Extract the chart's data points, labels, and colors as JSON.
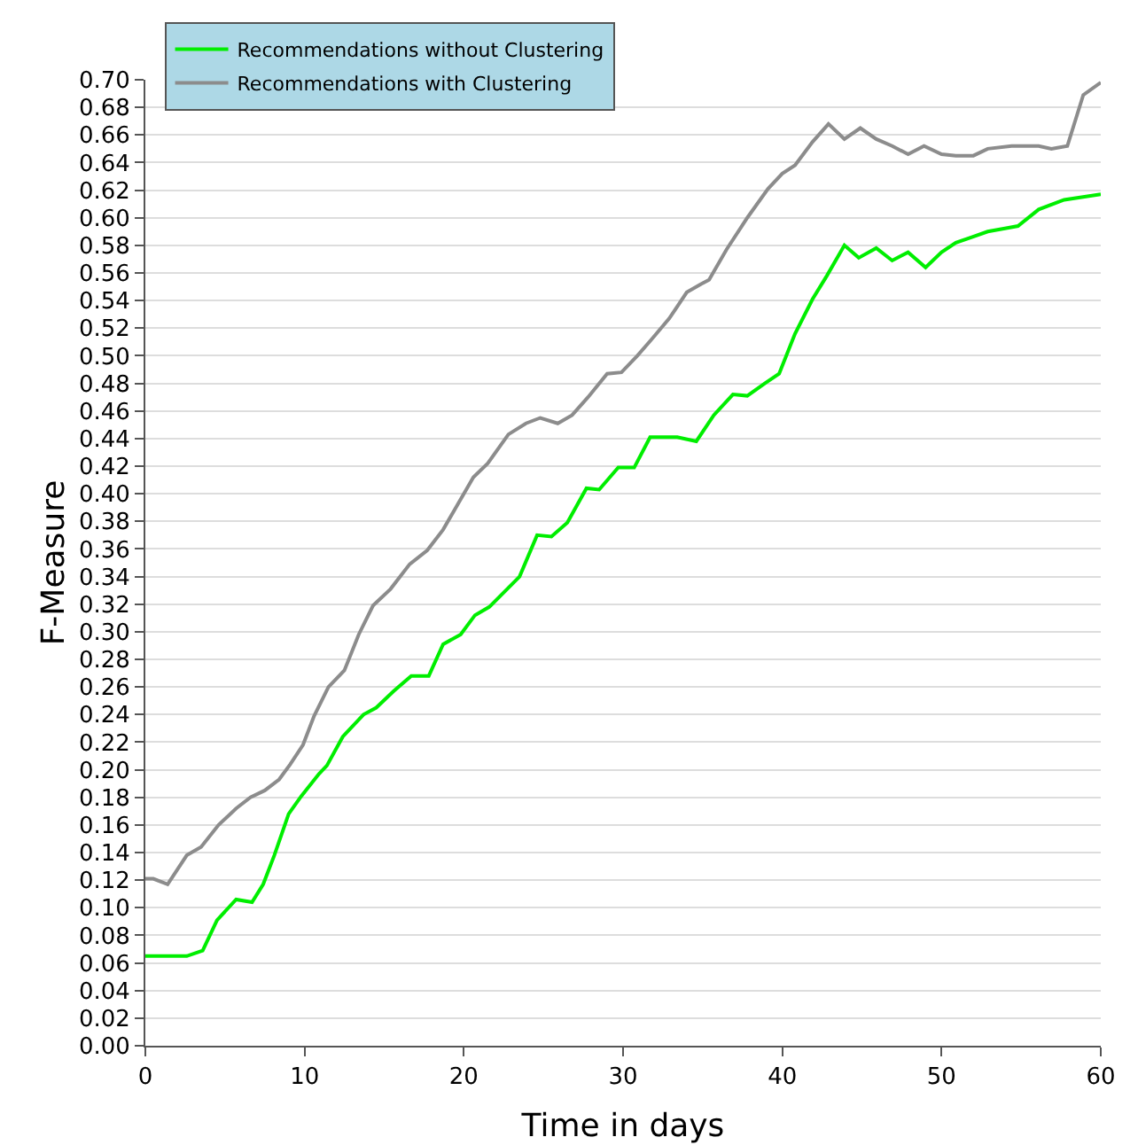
{
  "chart_data": {
    "type": "line",
    "xlabel": "Time in days",
    "ylabel": "F-Measure",
    "series": [
      {
        "name": "Recommendations without Clustering",
        "color": "#00ee00",
        "x": [
          0,
          1,
          2.6,
          3.6,
          4.5,
          5.7,
          6.7,
          7.4,
          8.1,
          9,
          9.8,
          10.9,
          11.4,
          12.4,
          13.7,
          14.5,
          15.6,
          16.7,
          17.8,
          18.7,
          19.8,
          20.7,
          21.6,
          23.5,
          24.6,
          25.5,
          26.5,
          27.7,
          28.5,
          29.7,
          30.7,
          31.7,
          33.4,
          34.6,
          35.7,
          36.9,
          37.8,
          38.9,
          39.8,
          40.8,
          41.9,
          42.8,
          43.9,
          44.8,
          45.9,
          46.9,
          47.9,
          49,
          50,
          50.9,
          51.9,
          52.9,
          54.8,
          56.1,
          57.7,
          60
        ],
        "values": [
          0.065,
          0.065,
          0.065,
          0.069,
          0.091,
          0.106,
          0.104,
          0.117,
          0.138,
          0.168,
          0.181,
          0.197,
          0.203,
          0.224,
          0.24,
          0.245,
          0.257,
          0.268,
          0.268,
          0.291,
          0.298,
          0.312,
          0.318,
          0.34,
          0.37,
          0.369,
          0.379,
          0.404,
          0.403,
          0.419,
          0.419,
          0.441,
          0.441,
          0.438,
          0.457,
          0.472,
          0.471,
          0.48,
          0.487,
          0.516,
          0.541,
          0.558,
          0.58,
          0.571,
          0.578,
          0.569,
          0.575,
          0.564,
          0.575,
          0.582,
          0.586,
          0.59,
          0.594,
          0.606,
          0.613,
          0.617
        ]
      },
      {
        "name": "Recommendations with Clustering",
        "color": "#8c8c8c",
        "x": [
          0,
          0.5,
          1.4,
          2.6,
          3.5,
          4.6,
          5.7,
          6.6,
          7.5,
          8.4,
          9.1,
          9.9,
          10.6,
          11.5,
          12.5,
          13.4,
          14.3,
          15.4,
          16.6,
          17.7,
          18.7,
          19.5,
          20.6,
          21.5,
          22.8,
          23.9,
          24.8,
          25.9,
          26.8,
          27.8,
          29,
          29.9,
          30.9,
          31.8,
          32.9,
          34,
          34.9,
          35.4,
          36.5,
          37.8,
          39.1,
          40,
          40.8,
          41.9,
          42.9,
          43.9,
          44.9,
          45.9,
          46.9,
          47.9,
          48.9,
          50,
          50.9,
          52,
          52.9,
          54.4,
          56.1,
          56.9,
          57.9,
          58.9,
          60
        ],
        "values": [
          0.121,
          0.121,
          0.117,
          0.138,
          0.144,
          0.16,
          0.172,
          0.18,
          0.185,
          0.193,
          0.204,
          0.218,
          0.239,
          0.26,
          0.272,
          0.298,
          0.319,
          0.331,
          0.349,
          0.359,
          0.374,
          0.39,
          0.412,
          0.422,
          0.443,
          0.451,
          0.455,
          0.451,
          0.457,
          0.47,
          0.487,
          0.488,
          0.5,
          0.512,
          0.527,
          0.546,
          0.552,
          0.555,
          0.577,
          0.6,
          0.621,
          0.632,
          0.638,
          0.655,
          0.668,
          0.657,
          0.665,
          0.657,
          0.652,
          0.646,
          0.652,
          0.646,
          0.645,
          0.645,
          0.65,
          0.652,
          0.652,
          0.65,
          0.652,
          0.689,
          0.698
        ]
      }
    ],
    "xlim": [
      0,
      60
    ],
    "xticks": [
      0,
      10,
      20,
      30,
      40,
      50,
      60
    ],
    "ylim": [
      0,
      0.7
    ],
    "yticks": [
      {
        "value": 0,
        "label": "0.00"
      },
      {
        "value": 0.02,
        "label": "0.02"
      },
      {
        "value": 0.04,
        "label": "0.04"
      },
      {
        "value": 0.06,
        "label": "0.06"
      },
      {
        "value": 0.08,
        "label": "0.08"
      },
      {
        "value": 0.1,
        "label": "0.10"
      },
      {
        "value": 0.12,
        "label": "0.12"
      },
      {
        "value": 0.14,
        "label": "0.14"
      },
      {
        "value": 0.16,
        "label": "0.16"
      },
      {
        "value": 0.18,
        "label": "0.18"
      },
      {
        "value": 0.2,
        "label": "0.20"
      },
      {
        "value": 0.22,
        "label": "0.22"
      },
      {
        "value": 0.24,
        "label": "0.24"
      },
      {
        "value": 0.26,
        "label": "0.26"
      },
      {
        "value": 0.28,
        "label": "0.28"
      },
      {
        "value": 0.3,
        "label": "0.30"
      },
      {
        "value": 0.32,
        "label": "0.32"
      },
      {
        "value": 0.34,
        "label": "0.34"
      },
      {
        "value": 0.36,
        "label": "0.36"
      },
      {
        "value": 0.38,
        "label": "0.38"
      },
      {
        "value": 0.4,
        "label": "0.40"
      },
      {
        "value": 0.42,
        "label": "0.42"
      },
      {
        "value": 0.44,
        "label": "0.44"
      },
      {
        "value": 0.46,
        "label": "0.46"
      },
      {
        "value": 0.48,
        "label": "0.48"
      },
      {
        "value": 0.5,
        "label": "0.50"
      },
      {
        "value": 0.52,
        "label": "0.52"
      },
      {
        "value": 0.54,
        "label": "0.54"
      },
      {
        "value": 0.56,
        "label": "0.56"
      },
      {
        "value": 0.58,
        "label": "0.58"
      },
      {
        "value": 0.6,
        "label": "0.60"
      },
      {
        "value": 0.62,
        "label": "0.62"
      },
      {
        "value": 0.64,
        "label": "0.64"
      },
      {
        "value": 0.66,
        "label": "0.66"
      },
      {
        "value": 0.68,
        "label": "0.68"
      },
      {
        "value": 0.7,
        "label": "0.70"
      }
    ],
    "grid": "y",
    "legend": "top left",
    "marker": "none",
    "line_style": "solid"
  }
}
